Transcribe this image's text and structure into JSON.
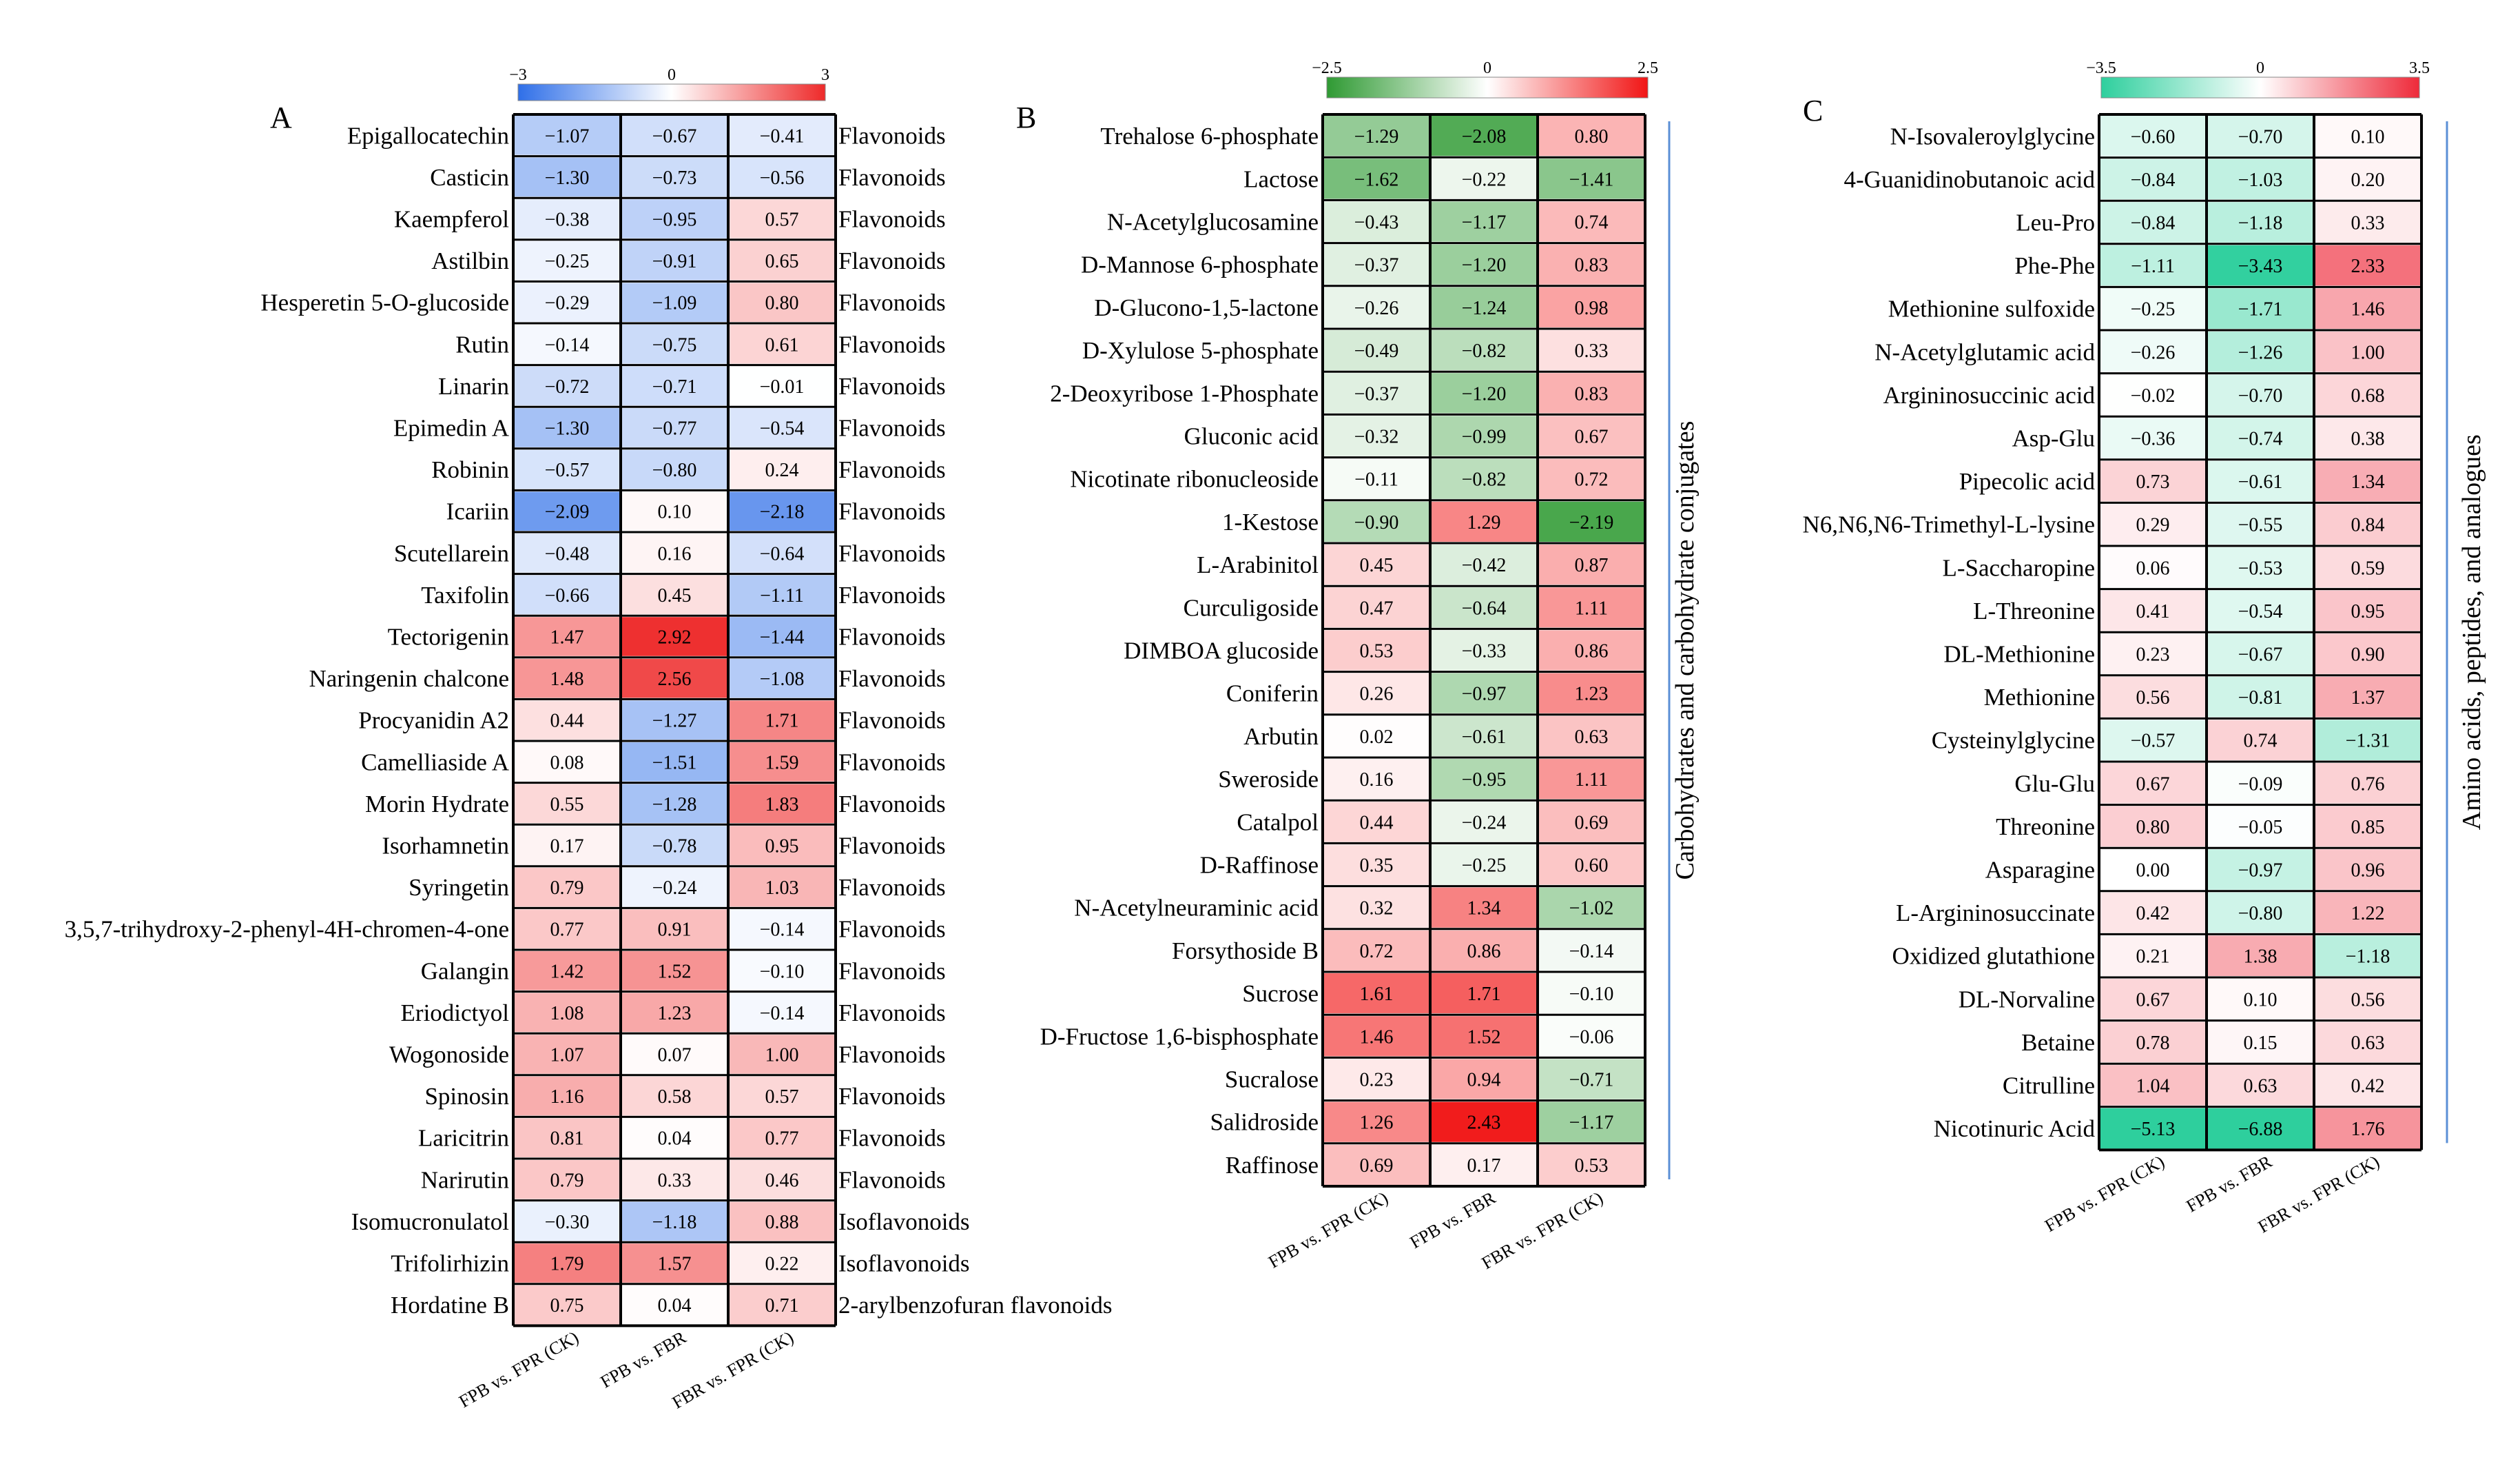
{
  "chart_data": [
    {
      "type": "heatmap",
      "panel_label": "A",
      "columns": [
        "FPB vs. FPR (CK)",
        "FPB vs. FBR",
        "FBR vs. FPR (CK)"
      ],
      "colorbar": {
        "min": -3,
        "max": 3,
        "min_label": "−3",
        "mid_label": "0",
        "max_label": "3",
        "low_color": "#2f6fe8",
        "mid_color": "#ffffff",
        "high_color": "#ee2a2a"
      },
      "rows": [
        {
          "name": "Epigallocatechin",
          "values": [
            -1.07,
            -0.67,
            -0.41
          ],
          "class": "Flavonoids"
        },
        {
          "name": "Casticin",
          "values": [
            -1.3,
            -0.73,
            -0.56
          ],
          "class": "Flavonoids"
        },
        {
          "name": "Kaempferol",
          "values": [
            -0.38,
            -0.95,
            0.57
          ],
          "class": "Flavonoids"
        },
        {
          "name": "Astilbin",
          "values": [
            -0.25,
            -0.91,
            0.65
          ],
          "class": "Flavonoids"
        },
        {
          "name": "Hesperetin 5-O-glucoside",
          "values": [
            -0.29,
            -1.09,
            0.8
          ],
          "class": "Flavonoids"
        },
        {
          "name": "Rutin",
          "values": [
            -0.14,
            -0.75,
            0.61
          ],
          "class": "Flavonoids"
        },
        {
          "name": "Linarin",
          "values": [
            -0.72,
            -0.71,
            -0.01
          ],
          "class": "Flavonoids"
        },
        {
          "name": "Epimedin A",
          "values": [
            -1.3,
            -0.77,
            -0.54
          ],
          "class": "Flavonoids"
        },
        {
          "name": "Robinin",
          "values": [
            -0.57,
            -0.8,
            0.24
          ],
          "class": "Flavonoids"
        },
        {
          "name": "Icariin",
          "values": [
            -2.09,
            0.1,
            -2.18
          ],
          "class": "Flavonoids"
        },
        {
          "name": "Scutellarein",
          "values": [
            -0.48,
            0.16,
            -0.64
          ],
          "class": "Flavonoids"
        },
        {
          "name": "Taxifolin",
          "values": [
            -0.66,
            0.45,
            -1.11
          ],
          "class": "Flavonoids"
        },
        {
          "name": "Tectorigenin",
          "values": [
            1.47,
            2.92,
            -1.44
          ],
          "class": "Flavonoids"
        },
        {
          "name": "Naringenin chalcone",
          "values": [
            1.48,
            2.56,
            -1.08
          ],
          "class": "Flavonoids"
        },
        {
          "name": "Procyanidin A2",
          "values": [
            0.44,
            -1.27,
            1.71
          ],
          "class": "Flavonoids"
        },
        {
          "name": "Camelliaside A",
          "values": [
            0.08,
            -1.51,
            1.59
          ],
          "class": "Flavonoids"
        },
        {
          "name": "Morin Hydrate",
          "values": [
            0.55,
            -1.28,
            1.83
          ],
          "class": "Flavonoids"
        },
        {
          "name": "Isorhamnetin",
          "values": [
            0.17,
            -0.78,
            0.95
          ],
          "class": "Flavonoids"
        },
        {
          "name": "Syringetin",
          "values": [
            0.79,
            -0.24,
            1.03
          ],
          "class": "Flavonoids"
        },
        {
          "name": "3,5,7-trihydroxy-2-phenyl-4H-chromen-4-one",
          "values": [
            0.77,
            0.91,
            -0.14
          ],
          "class": "Flavonoids"
        },
        {
          "name": "Galangin",
          "values": [
            1.42,
            1.52,
            -0.1
          ],
          "class": "Flavonoids"
        },
        {
          "name": "Eriodictyol",
          "values": [
            1.08,
            1.23,
            -0.14
          ],
          "class": "Flavonoids"
        },
        {
          "name": "Wogonoside",
          "values": [
            1.07,
            0.07,
            1.0
          ],
          "class": "Flavonoids"
        },
        {
          "name": "Spinosin",
          "values": [
            1.16,
            0.58,
            0.57
          ],
          "class": "Flavonoids"
        },
        {
          "name": "Laricitrin",
          "values": [
            0.81,
            0.04,
            0.77
          ],
          "class": "Flavonoids"
        },
        {
          "name": "Narirutin",
          "values": [
            0.79,
            0.33,
            0.46
          ],
          "class": "Flavonoids"
        },
        {
          "name": "Isomucronulatol",
          "values": [
            -0.3,
            -1.18,
            0.88
          ],
          "class": "Isoflavonoids"
        },
        {
          "name": "Trifolirhizin",
          "values": [
            1.79,
            1.57,
            0.22
          ],
          "class": "Isoflavonoids"
        },
        {
          "name": "Hordatine B",
          "values": [
            0.75,
            0.04,
            0.71
          ],
          "class": "2-arylbenzofuran flavonoids"
        }
      ]
    },
    {
      "type": "heatmap",
      "panel_label": "B",
      "group_label": "Carbohydrates and carbohydrate conjugates",
      "columns": [
        "FPB vs. FPR (CK)",
        "FPB vs. FBR",
        "FBR vs. FPR (CK)"
      ],
      "colorbar": {
        "min": -2.5,
        "max": 2.5,
        "min_label": "−2.5",
        "mid_label": "0",
        "max_label": "2.5",
        "low_color": "#2f9a33",
        "mid_color": "#ffffff",
        "high_color": "#f11515"
      },
      "rows": [
        {
          "name": "Trehalose 6-phosphate",
          "values": [
            -1.29,
            -2.08,
            0.8
          ]
        },
        {
          "name": "Lactose",
          "values": [
            -1.62,
            -0.22,
            -1.41
          ]
        },
        {
          "name": "N-Acetylglucosamine",
          "values": [
            -0.43,
            -1.17,
            0.74
          ]
        },
        {
          "name": "D-Mannose 6-phosphate",
          "values": [
            -0.37,
            -1.2,
            0.83
          ]
        },
        {
          "name": "D-Glucono-1,5-lactone",
          "values": [
            -0.26,
            -1.24,
            0.98
          ]
        },
        {
          "name": "D-Xylulose 5-phosphate",
          "values": [
            -0.49,
            -0.82,
            0.33
          ]
        },
        {
          "name": "2-Deoxyribose 1-Phosphate",
          "values": [
            -0.37,
            -1.2,
            0.83
          ]
        },
        {
          "name": "Gluconic acid",
          "values": [
            -0.32,
            -0.99,
            0.67
          ]
        },
        {
          "name": "Nicotinate ribonucleoside",
          "values": [
            -0.11,
            -0.82,
            0.72
          ]
        },
        {
          "name": "1-Kestose",
          "values": [
            -0.9,
            1.29,
            -2.19
          ]
        },
        {
          "name": "L-Arabinitol",
          "values": [
            0.45,
            -0.42,
            0.87
          ]
        },
        {
          "name": "Curculigoside",
          "values": [
            0.47,
            -0.64,
            1.11
          ]
        },
        {
          "name": "DIMBOA glucoside",
          "values": [
            0.53,
            -0.33,
            0.86
          ]
        },
        {
          "name": "Coniferin",
          "values": [
            0.26,
            -0.97,
            1.23
          ]
        },
        {
          "name": "Arbutin",
          "values": [
            0.02,
            -0.61,
            0.63
          ]
        },
        {
          "name": "Sweroside",
          "values": [
            0.16,
            -0.95,
            1.11
          ]
        },
        {
          "name": "Catalpol",
          "values": [
            0.44,
            -0.24,
            0.69
          ]
        },
        {
          "name": "D-Raffinose",
          "values": [
            0.35,
            -0.25,
            0.6
          ]
        },
        {
          "name": "N-Acetylneuraminic acid",
          "values": [
            0.32,
            1.34,
            -1.02
          ]
        },
        {
          "name": "Forsythoside B",
          "values": [
            0.72,
            0.86,
            -0.14
          ]
        },
        {
          "name": "Sucrose",
          "values": [
            1.61,
            1.71,
            -0.1
          ]
        },
        {
          "name": "D-Fructose 1,6-bisphosphate",
          "values": [
            1.46,
            1.52,
            -0.06
          ]
        },
        {
          "name": "Sucralose",
          "values": [
            0.23,
            0.94,
            -0.71
          ]
        },
        {
          "name": "Salidroside",
          "values": [
            1.26,
            2.43,
            -1.17
          ]
        },
        {
          "name": "Raffinose",
          "values": [
            0.69,
            0.17,
            0.53
          ]
        }
      ]
    },
    {
      "type": "heatmap",
      "panel_label": "C",
      "group_label": "Amino acids, peptides, and analogues",
      "columns": [
        "FPB vs. FPR (CK)",
        "FPB vs. FBR",
        "FBR vs. FPR (CK)"
      ],
      "colorbar": {
        "min": -3.5,
        "max": 3.5,
        "min_label": "−3.5",
        "mid_label": "0",
        "max_label": "3.5",
        "low_color": "#2ecf9d",
        "mid_color": "#ffffff",
        "high_color": "#ee2a3a"
      },
      "rows": [
        {
          "name": "N-Isovaleroylglycine",
          "values": [
            -0.6,
            -0.7,
            0.1
          ]
        },
        {
          "name": "4-Guanidinobutanoic acid",
          "values": [
            -0.84,
            -1.03,
            0.2
          ]
        },
        {
          "name": "Leu-Pro",
          "values": [
            -0.84,
            -1.18,
            0.33
          ]
        },
        {
          "name": "Phe-Phe",
          "values": [
            -1.11,
            -3.43,
            2.33
          ]
        },
        {
          "name": "Methionine sulfoxide",
          "values": [
            -0.25,
            -1.71,
            1.46
          ]
        },
        {
          "name": "N-Acetylglutamic acid",
          "values": [
            -0.26,
            -1.26,
            1.0
          ]
        },
        {
          "name": "Argininosuccinic acid",
          "values": [
            -0.02,
            -0.7,
            0.68
          ]
        },
        {
          "name": "Asp-Glu",
          "values": [
            -0.36,
            -0.74,
            0.38
          ]
        },
        {
          "name": "Pipecolic acid",
          "values": [
            0.73,
            -0.61,
            1.34
          ]
        },
        {
          "name": "N6,N6,N6-Trimethyl-L-lysine",
          "values": [
            0.29,
            -0.55,
            0.84
          ]
        },
        {
          "name": "L-Saccharopine",
          "values": [
            0.06,
            -0.53,
            0.59
          ]
        },
        {
          "name": "L-Threonine",
          "values": [
            0.41,
            -0.54,
            0.95
          ]
        },
        {
          "name": "DL-Methionine",
          "values": [
            0.23,
            -0.67,
            0.9
          ]
        },
        {
          "name": "Methionine",
          "values": [
            0.56,
            -0.81,
            1.37
          ]
        },
        {
          "name": "Cysteinylglycine",
          "values": [
            -0.57,
            0.74,
            -1.31
          ]
        },
        {
          "name": "Glu-Glu",
          "values": [
            0.67,
            -0.09,
            0.76
          ]
        },
        {
          "name": "Threonine",
          "values": [
            0.8,
            -0.05,
            0.85
          ]
        },
        {
          "name": "Asparagine",
          "values": [
            0.0,
            -0.97,
            0.96
          ]
        },
        {
          "name": "L-Argininosuccinate",
          "values": [
            0.42,
            -0.8,
            1.22
          ]
        },
        {
          "name": "Oxidized glutathione",
          "values": [
            0.21,
            1.38,
            -1.18
          ]
        },
        {
          "name": "DL-Norvaline",
          "values": [
            0.67,
            0.1,
            0.56
          ]
        },
        {
          "name": "Betaine",
          "values": [
            0.78,
            0.15,
            0.63
          ]
        },
        {
          "name": "Citrulline",
          "values": [
            1.04,
            0.63,
            0.42
          ]
        },
        {
          "name": "Nicotinuric Acid",
          "values": [
            -5.13,
            -6.88,
            1.76
          ]
        }
      ]
    }
  ]
}
